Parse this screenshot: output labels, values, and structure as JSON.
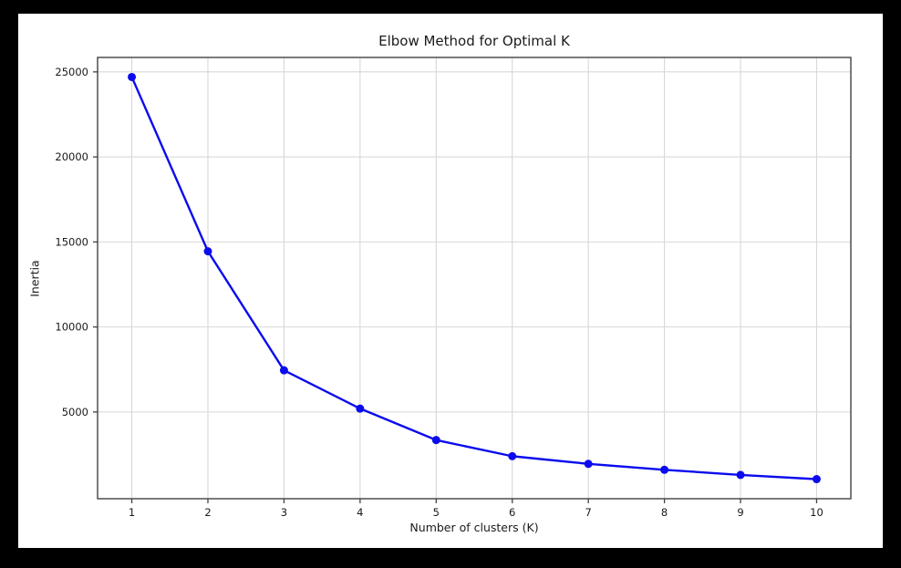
{
  "chart_data": {
    "type": "line",
    "title": "Elbow Method for Optimal K",
    "xlabel": "Number of clusters (K)",
    "ylabel": "Inertia",
    "x": [
      1,
      2,
      3,
      4,
      5,
      6,
      7,
      8,
      9,
      10
    ],
    "series": [
      {
        "name": "Inertia",
        "values": [
          24700,
          14450,
          7450,
          5200,
          3350,
          2400,
          1950,
          1600,
          1300,
          1050
        ]
      }
    ],
    "xticks": [
      1,
      2,
      3,
      4,
      5,
      6,
      7,
      8,
      9,
      10
    ],
    "xtick_labels": [
      "1",
      "2",
      "3",
      "4",
      "5",
      "6",
      "7",
      "8",
      "9",
      "10"
    ],
    "yticks": [
      5000,
      10000,
      15000,
      20000,
      25000
    ],
    "ytick_labels": [
      "5000",
      "10000",
      "15000",
      "20000",
      "25000"
    ],
    "xlim": [
      0.55,
      10.45
    ],
    "ylim": [
      -100,
      25850
    ],
    "grid": true,
    "legend": "none",
    "line_color": "#0b0bee",
    "marker": "circle",
    "marker_radius": 4.5,
    "line_width": 2.4,
    "grid_color": "#d8d8d8",
    "spine_color": "#424242",
    "tick_color": "#424242",
    "text_color": "#1a1a1a",
    "figure_background": "#ffffff",
    "outer_background": "#000000"
  }
}
